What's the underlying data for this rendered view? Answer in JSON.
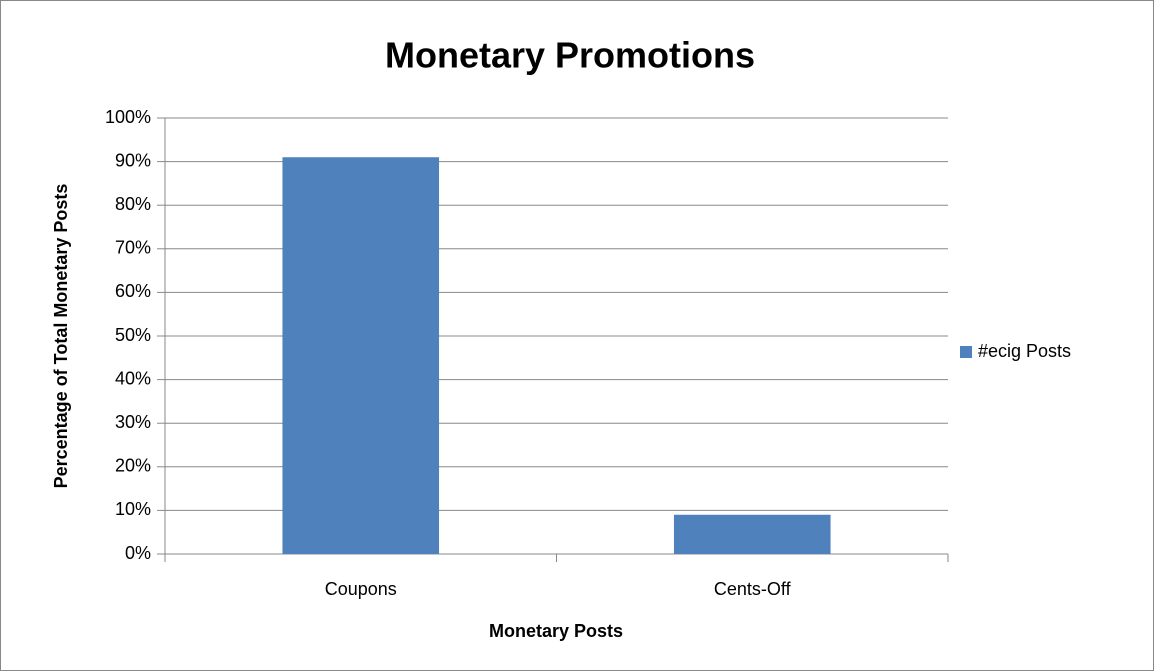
{
  "chart_data": {
    "type": "bar",
    "title": "Monetary Promotions",
    "x_label": "Monetary Posts",
    "y_label": "Percentage of Total Monetary Posts",
    "categories": [
      "Coupons",
      "Cents-Off"
    ],
    "series": [
      {
        "name": "#ecig Posts",
        "color": "#4f81bd",
        "values": [
          91,
          9
        ]
      }
    ],
    "ylim": [
      0,
      100
    ],
    "yticks": [
      {
        "value": 0,
        "label": "0%"
      },
      {
        "value": 10,
        "label": "10%"
      },
      {
        "value": 20,
        "label": "20%"
      },
      {
        "value": 30,
        "label": "30%"
      },
      {
        "value": 40,
        "label": "40%"
      },
      {
        "value": 50,
        "label": "50%"
      },
      {
        "value": 60,
        "label": "60%"
      },
      {
        "value": 70,
        "label": "70%"
      },
      {
        "value": 80,
        "label": "80%"
      },
      {
        "value": 90,
        "label": "90%"
      },
      {
        "value": 100,
        "label": "100%"
      }
    ],
    "grid": true,
    "legend": "right"
  }
}
